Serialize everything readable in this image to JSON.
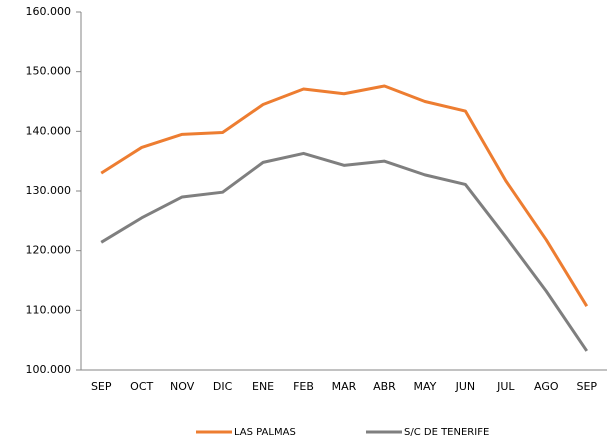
{
  "chart_data": {
    "type": "line",
    "categories": [
      "SEP",
      "OCT",
      "NOV",
      "DIC",
      "ENE",
      "FEB",
      "MAR",
      "ABR",
      "MAY",
      "JUN",
      "JUL",
      "AGO",
      "SEP"
    ],
    "series": [
      {
        "name": "LAS PALMAS",
        "color": "#ed7d31",
        "values": [
          133000,
          137300,
          139500,
          139800,
          144500,
          147100,
          146300,
          147600,
          145000,
          143400,
          131700,
          121800,
          110700
        ]
      },
      {
        "name": "S/C DE TENERIFE",
        "color": "#7f7f7f",
        "values": [
          121400,
          125500,
          129000,
          129800,
          134800,
          136300,
          134300,
          135000,
          132700,
          131100,
          122300,
          113200,
          103200
        ]
      }
    ],
    "ylim": [
      100000,
      160000
    ],
    "yticks": [
      {
        "value": 100000,
        "label": "100.000"
      },
      {
        "value": 110000,
        "label": "110.000"
      },
      {
        "value": 120000,
        "label": "120.000"
      },
      {
        "value": 130000,
        "label": "130.000"
      },
      {
        "value": 140000,
        "label": "140.000"
      },
      {
        "value": 150000,
        "label": "150.000"
      },
      {
        "value": 160000,
        "label": "160.000"
      }
    ],
    "grid": false,
    "legend": "bottom"
  }
}
